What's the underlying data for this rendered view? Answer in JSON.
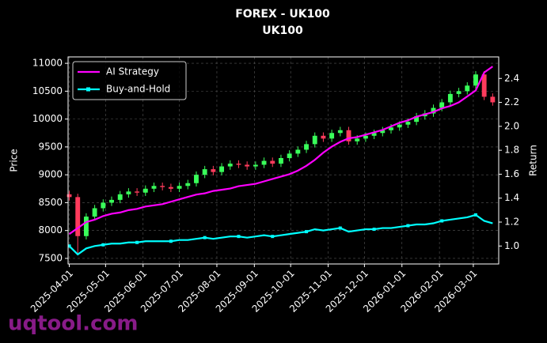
{
  "chart_data": {
    "type": "candlestick",
    "title": "FOREX - UK100",
    "subtitle": "UK100",
    "ylabel": "Price",
    "y2label": "Return",
    "x": [
      "2025-04-01",
      "2025-04-08",
      "2025-04-15",
      "2025-04-22",
      "2025-04-29",
      "2025-05-06",
      "2025-05-13",
      "2025-05-20",
      "2025-05-27",
      "2025-06-03",
      "2025-06-10",
      "2025-06-17",
      "2025-06-24",
      "2025-07-01",
      "2025-07-08",
      "2025-07-15",
      "2025-07-22",
      "2025-07-29",
      "2025-08-05",
      "2025-08-12",
      "2025-08-19",
      "2025-08-26",
      "2025-09-02",
      "2025-09-09",
      "2025-09-16",
      "2025-09-23",
      "2025-09-30",
      "2025-10-07",
      "2025-10-14",
      "2025-10-21",
      "2025-10-28",
      "2025-11-04",
      "2025-11-11",
      "2025-11-18",
      "2025-11-25",
      "2025-12-02",
      "2025-12-09",
      "2025-12-16",
      "2025-12-23",
      "2025-12-30",
      "2026-01-06",
      "2026-01-13",
      "2026-01-20",
      "2026-01-27",
      "2026-02-03",
      "2026-02-10",
      "2026-02-17",
      "2026-02-24",
      "2026-03-03",
      "2026-03-10",
      "2026-03-17"
    ],
    "open": [
      8650,
      8600,
      7900,
      8250,
      8400,
      8500,
      8550,
      8650,
      8700,
      8680,
      8750,
      8800,
      8780,
      8750,
      8800,
      8850,
      9000,
      9100,
      9050,
      9150,
      9200,
      9180,
      9150,
      9180,
      9250,
      9200,
      9300,
      9380,
      9450,
      9550,
      9700,
      9650,
      9750,
      9800,
      9600,
      9650,
      9700,
      9750,
      9800,
      9850,
      9900,
      9950,
      10050,
      10100,
      10200,
      10300,
      10450,
      10500,
      10600,
      10800,
      10400
    ],
    "high": [
      8710,
      8660,
      8310,
      8460,
      8560,
      8610,
      8710,
      8760,
      8760,
      8810,
      8860,
      8860,
      8840,
      8860,
      8910,
      9060,
      9160,
      9160,
      9210,
      9260,
      9260,
      9240,
      9240,
      9310,
      9310,
      9360,
      9440,
      9510,
      9610,
      9760,
      9760,
      9810,
      9860,
      9860,
      9710,
      9760,
      9810,
      9860,
      9910,
      9960,
      10010,
      10110,
      10160,
      10260,
      10360,
      10510,
      10560,
      10660,
      10860,
      10860,
      10460
    ],
    "low": [
      8540,
      7560,
      7840,
      8190,
      8340,
      8440,
      8490,
      8590,
      8620,
      8620,
      8690,
      8720,
      8690,
      8690,
      8740,
      8790,
      8940,
      8990,
      8990,
      9090,
      9120,
      9090,
      9090,
      9120,
      9140,
      9140,
      9240,
      9320,
      9390,
      9490,
      9590,
      9590,
      9690,
      9540,
      9540,
      9590,
      9640,
      9690,
      9740,
      9790,
      9840,
      9890,
      9990,
      10040,
      10140,
      10240,
      10390,
      10440,
      10540,
      10340,
      10240
    ],
    "close": [
      8600,
      7900,
      8250,
      8400,
      8500,
      8550,
      8650,
      8700,
      8680,
      8750,
      8800,
      8780,
      8750,
      8800,
      8850,
      9000,
      9100,
      9050,
      9150,
      9200,
      9180,
      9150,
      9180,
      9250,
      9200,
      9300,
      9380,
      9450,
      9550,
      9700,
      9650,
      9750,
      9800,
      9600,
      9650,
      9700,
      9750,
      9800,
      9850,
      9900,
      9950,
      10050,
      10100,
      10200,
      10300,
      10450,
      10500,
      10600,
      10800,
      10400,
      10300
    ],
    "up_color": "#39ff5a",
    "down_color": "#ff3b5c",
    "series": [
      {
        "name": "AI Strategy",
        "color": "#ff00ff",
        "axis": "y2",
        "marker": "none",
        "values": [
          1.1,
          1.15,
          1.2,
          1.22,
          1.25,
          1.27,
          1.28,
          1.3,
          1.31,
          1.33,
          1.34,
          1.35,
          1.37,
          1.39,
          1.41,
          1.43,
          1.44,
          1.46,
          1.47,
          1.48,
          1.5,
          1.51,
          1.52,
          1.54,
          1.56,
          1.58,
          1.6,
          1.63,
          1.67,
          1.72,
          1.78,
          1.83,
          1.87,
          1.9,
          1.91,
          1.93,
          1.95,
          1.97,
          2.0,
          2.03,
          2.05,
          2.08,
          2.1,
          2.12,
          2.15,
          2.17,
          2.2,
          2.25,
          2.3,
          2.45,
          2.5
        ]
      },
      {
        "name": "Buy-and-Hold",
        "color": "#00ffff",
        "axis": "y2",
        "marker": "square",
        "values": [
          1.0,
          0.93,
          0.98,
          1.0,
          1.01,
          1.02,
          1.02,
          1.03,
          1.03,
          1.04,
          1.04,
          1.04,
          1.04,
          1.05,
          1.05,
          1.06,
          1.07,
          1.06,
          1.07,
          1.08,
          1.08,
          1.07,
          1.08,
          1.09,
          1.08,
          1.09,
          1.1,
          1.11,
          1.12,
          1.14,
          1.13,
          1.14,
          1.15,
          1.12,
          1.13,
          1.14,
          1.14,
          1.15,
          1.15,
          1.16,
          1.17,
          1.18,
          1.18,
          1.19,
          1.21,
          1.22,
          1.23,
          1.24,
          1.26,
          1.21,
          1.19
        ]
      }
    ],
    "xlim": [
      "2025-03-31",
      "2026-03-22"
    ],
    "xticks": [
      "2025-04-01",
      "2025-05-01",
      "2025-06-01",
      "2025-07-01",
      "2025-08-01",
      "2025-09-01",
      "2025-10-01",
      "2025-11-01",
      "2025-12-01",
      "2026-01-01",
      "2026-02-01",
      "2026-03-01"
    ],
    "ylim": [
      7400,
      11115
    ],
    "yticks": [
      7500,
      8000,
      8500,
      9000,
      9500,
      10000,
      10500,
      11000
    ],
    "y2lim": [
      0.85,
      2.58
    ],
    "y2ticks": [
      {
        "value": 1.0,
        "label": "1.0"
      },
      {
        "value": 1.2,
        "label": "1.2"
      },
      {
        "value": 1.4,
        "label": "1.4"
      },
      {
        "value": 1.6,
        "label": "1.6"
      },
      {
        "value": 1.8,
        "label": "1.8"
      },
      {
        "value": 2.0,
        "label": "2.0"
      },
      {
        "value": 2.2,
        "label": "2.2"
      },
      {
        "value": 2.4,
        "label": "2.4"
      }
    ],
    "grid": true,
    "legend": "upper left"
  },
  "watermark": "uqtool.com"
}
